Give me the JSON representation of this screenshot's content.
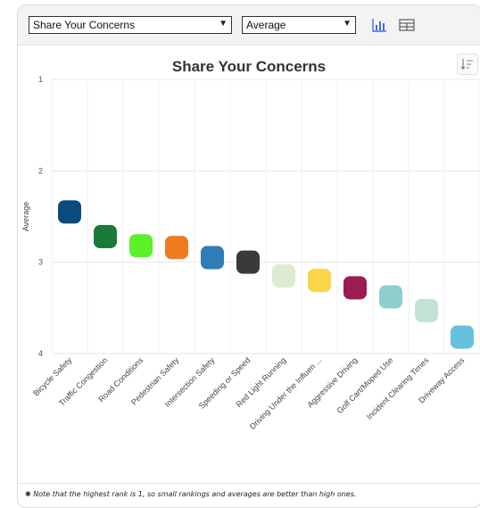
{
  "toolbar": {
    "survey_select": "Share Your Concerns",
    "metric_select": "Average",
    "chart_view_icon": "bar-chart-icon",
    "table_view_icon": "table-icon"
  },
  "chart_data": {
    "type": "scatter",
    "title": "Share Your Concerns",
    "xlabel": "",
    "ylabel": "Average",
    "ylim": [
      1,
      4
    ],
    "y_reversed": true,
    "y_ticks": [
      "1",
      "2",
      "3",
      "4"
    ],
    "grid": true,
    "categories": [
      "Bicycle Safety",
      "Traffic Congestion",
      "Road Conditions",
      "Pedestrian Safety",
      "Intersection Safety",
      "Speeding or Speed",
      "Red Light Running",
      "Driving Under the Influen ...",
      "Aggressive Driving",
      "Golf Cart/Moped Use",
      "Incident Clearing Times",
      "Driveway Access"
    ],
    "values": [
      2.45,
      2.72,
      2.82,
      2.84,
      2.95,
      3.0,
      3.15,
      3.2,
      3.28,
      3.38,
      3.53,
      3.82
    ],
    "colors": [
      "#0a4a7e",
      "#1b7a3a",
      "#5bf02a",
      "#ef7a1f",
      "#2f7db7",
      "#3a3a3a",
      "#dcecd0",
      "#fbd44a",
      "#9b1d52",
      "#8ecfd0",
      "#c4e2d3",
      "#67c0dd"
    ]
  },
  "sort_icon": "sort-icon",
  "footnote": "✱ Note that the highest rank is 1, so small rankings and averages are better than high ones."
}
